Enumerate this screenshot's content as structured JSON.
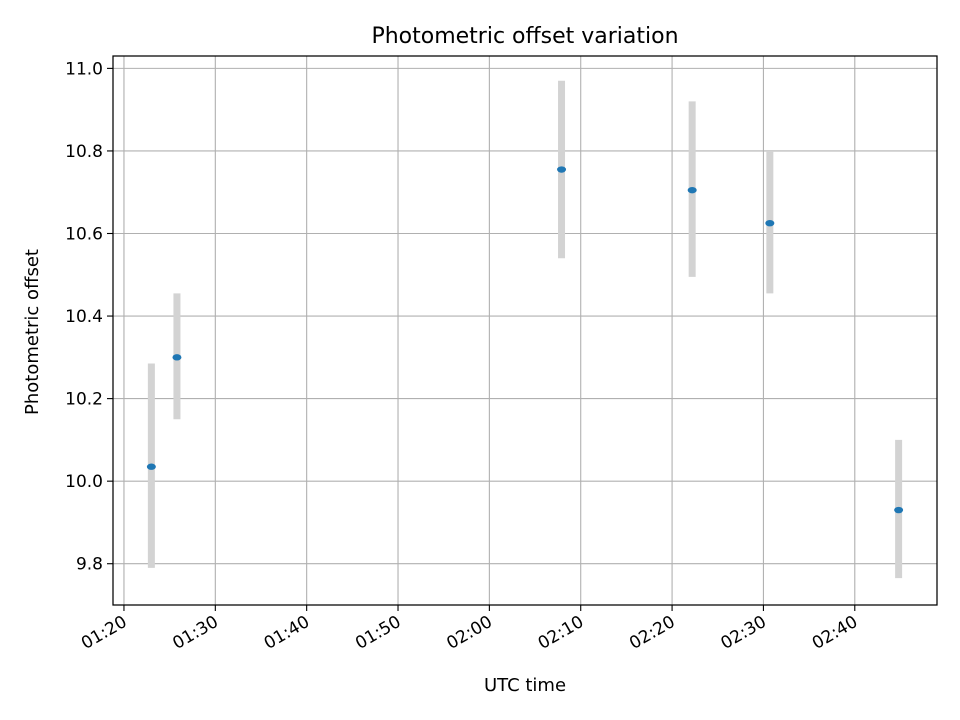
{
  "chart_data": {
    "type": "scatter",
    "title": "Photometric offset variation",
    "xlabel": "UTC time",
    "ylabel": "Photometric offset",
    "x_tick_labels": [
      "01:20",
      "01:30",
      "01:40",
      "01:50",
      "02:00",
      "02:10",
      "02:20",
      "02:30",
      "02:40"
    ],
    "y_tick_labels": [
      "9.8",
      "10.0",
      "10.2",
      "10.4",
      "10.6",
      "10.8",
      "11.0"
    ],
    "x_ticks_minutes": [
      80,
      90,
      100,
      110,
      120,
      130,
      140,
      150,
      160
    ],
    "y_ticks": [
      9.8,
      10.0,
      10.2,
      10.4,
      10.6,
      10.8,
      11.0
    ],
    "xlim": [
      "01:18.8",
      "02:49.0"
    ],
    "ylim": [
      9.7,
      11.03
    ],
    "grid": true,
    "series": [
      {
        "points": [
          {
            "x": "01:23.0",
            "y": 10.035,
            "yerr_low": 9.79,
            "yerr_high": 10.285
          },
          {
            "x": "01:25.8",
            "y": 10.3,
            "yerr_low": 10.15,
            "yerr_high": 10.455
          },
          {
            "x": "02:07.9",
            "y": 10.755,
            "yerr_low": 10.54,
            "yerr_high": 10.97
          },
          {
            "x": "02:22.2",
            "y": 10.705,
            "yerr_low": 10.495,
            "yerr_high": 10.92
          },
          {
            "x": "02:30.7",
            "y": 10.625,
            "yerr_low": 10.455,
            "yerr_high": 10.8
          },
          {
            "x": "02:44.8",
            "y": 9.93,
            "yerr_low": 9.765,
            "yerr_high": 10.1
          }
        ]
      }
    ],
    "colors": {
      "point": "#1f77b4",
      "errorbar": "#d3d3d3",
      "grid": "#b0b0b0",
      "axes": "#000000"
    }
  }
}
